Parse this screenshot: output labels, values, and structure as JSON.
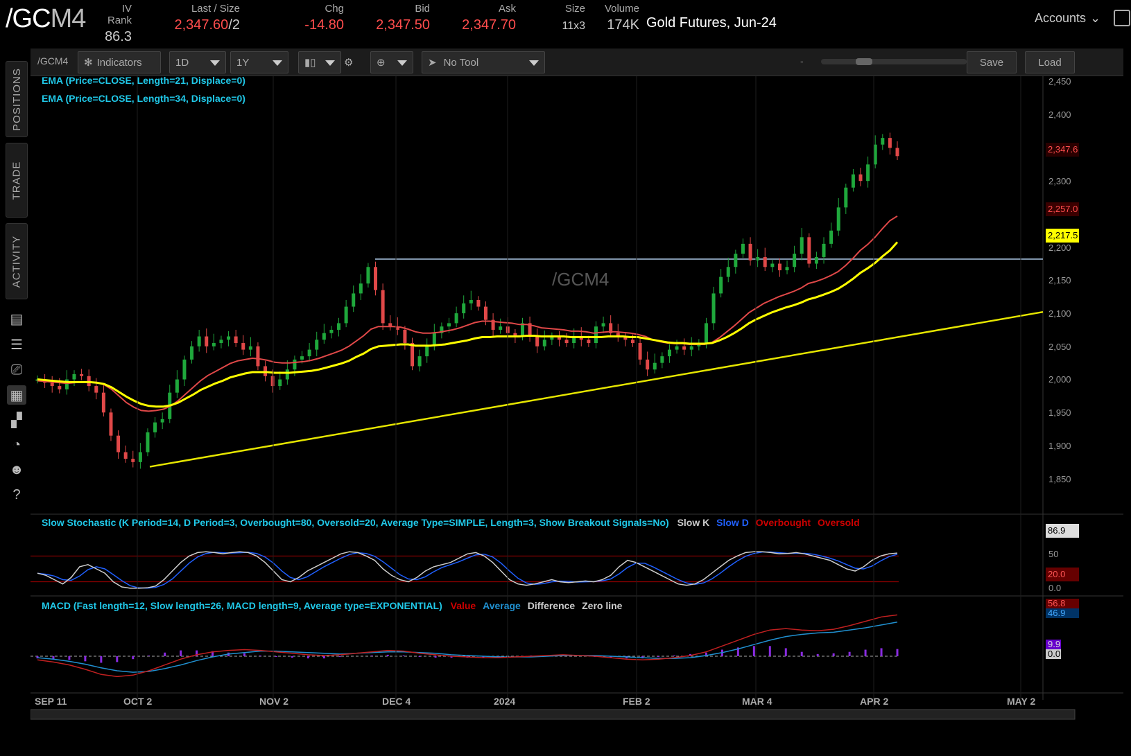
{
  "quote": {
    "symbol_main": "/GC",
    "symbol_dim": "M4",
    "iv_rank_label": "IV Rank",
    "iv_rank": "86.3",
    "last_label": "Last / Size",
    "last": "2,347.60",
    "last_size": "/2",
    "chg_label": "Chg",
    "chg": "-14.80",
    "bid_label": "Bid",
    "bid": "2,347.50",
    "ask_label": "Ask",
    "ask": "2,347.70",
    "size_label": "Size",
    "size": "11x3",
    "volume_label": "Volume",
    "volume": "174K",
    "contract": "Gold Futures, Jun-24",
    "accounts": "Accounts",
    "colors": {
      "negative": "#ff4d4d",
      "accent": "#20c8e8"
    }
  },
  "sidebar": {
    "tabs": [
      "POSITIONS",
      "TRADE",
      "ACTIVITY"
    ],
    "icons": [
      "monitor-icon",
      "list-icon",
      "tv-icon",
      "chart-icon",
      "grid-icon",
      "gauge-icon",
      "people-icon",
      "help-icon"
    ]
  },
  "toolbar": {
    "symbol": "/GCM4",
    "indicators": "Indicators",
    "aggregation": "1D",
    "range": "1Y",
    "drawing_tool": "No Tool",
    "zoom_minus": "-",
    "zoom_plus": "+",
    "save": "Save",
    "load": "Load"
  },
  "chart": {
    "watermark": "/GCM4",
    "study_ema21": "EMA (Price=CLOSE, Length=21, Displace=0)",
    "study_ema34": "EMA (Price=CLOSE, Length=34, Displace=0)",
    "price_ticks": [
      "2,450",
      "2,400",
      "2,347.6",
      "2,300",
      "2,257.0",
      "2,217.5",
      "2,200",
      "2,150",
      "2,100",
      "2,050",
      "2,000",
      "1,950",
      "1,900",
      "1,850"
    ],
    "tag_last": "2,347.6",
    "tag_ema21": "2,257.0",
    "tag_ema34": "2,217.5",
    "stoch_legend": "Slow Stochastic (K Period=14, D Period=3, Overbought=80, Oversold=20, Average Type=SIMPLE, Length=3, Show Breakout Signals=No)",
    "stoch_slowk": "Slow K",
    "stoch_slowd": "Slow D",
    "stoch_ob": "Overbought",
    "stoch_os": "Oversold",
    "stoch_ticks": {
      "k": "86.9",
      "mid": "50",
      "os": "20.0",
      "zero": "0.0"
    },
    "macd_legend": "MACD (Fast length=12, Slow length=26, MACD length=9, Average type=EXPONENTIAL)",
    "macd_value": "Value",
    "macd_avg": "Average",
    "macd_diff": "Difference",
    "macd_zero": "Zero line",
    "macd_ticks": {
      "value": "56.8",
      "avg": "46.9",
      "diff": "9.9",
      "zero": "0.0"
    },
    "x_ticks": [
      "SEP 11",
      "OCT 2",
      "NOV 2",
      "DEC 4",
      "2024",
      "FEB 2",
      "MAR 4",
      "APR 2",
      "MAY 2"
    ]
  },
  "chart_data": {
    "type": "candlestick",
    "title": "/GCM4",
    "x_label": "",
    "y_label": "",
    "ylim": [
      1800,
      2460
    ],
    "horizontal_level": 2192,
    "trendline": [
      [
        "2023-10-04",
        1878
      ],
      [
        "2024-05-01",
        2112
      ]
    ],
    "dates": [
      "SEP 11",
      "OCT 2",
      "NOV 2",
      "DEC 4",
      "2024",
      "FEB 2",
      "MAR 4",
      "APR 2"
    ],
    "closes": [
      2010,
      2005,
      2000,
      1995,
      2010,
      2018,
      2015,
      2000,
      1990,
      1960,
      1925,
      1900,
      1890,
      1885,
      1900,
      1930,
      1945,
      1950,
      1990,
      2010,
      2040,
      2060,
      2075,
      2060,
      2065,
      2070,
      2075,
      2065,
      2055,
      2060,
      2030,
      2015,
      2000,
      2010,
      2025,
      2040,
      2045,
      2055,
      2070,
      2080,
      2085,
      2095,
      2120,
      2140,
      2155,
      2180,
      2145,
      2095,
      2090,
      2085,
      2065,
      2030,
      2045,
      2060,
      2080,
      2090,
      2095,
      2110,
      2125,
      2130,
      2120,
      2100,
      2085,
      2090,
      2080,
      2075,
      2095,
      2075,
      2060,
      2070,
      2075,
      2070,
      2065,
      2075,
      2070,
      2065,
      2090,
      2095,
      2080,
      2075,
      2070,
      2065,
      2040,
      2025,
      2035,
      2045,
      2055,
      2060,
      2055,
      2060,
      2065,
      2095,
      2140,
      2165,
      2180,
      2200,
      2215,
      2190,
      2195,
      2180,
      2185,
      2175,
      2180,
      2200,
      2225,
      2185,
      2195,
      2215,
      2235,
      2270,
      2300,
      2320,
      2310,
      2335,
      2365,
      2375,
      2360,
      2347.6
    ],
    "ema21": [
      2008,
      2007,
      2006,
      2005,
      2004,
      2005,
      2006,
      2006,
      2005,
      2002,
      1995,
      1985,
      1975,
      1968,
      1963,
      1962,
      1963,
      1965,
      1970,
      1978,
      1988,
      1998,
      2008,
      2016,
      2022,
      2028,
      2034,
      2038,
      2040,
      2042,
      2041,
      2039,
      2036,
      2035,
      2035,
      2036,
      2037,
      2039,
      2042,
      2046,
      2050,
      2054,
      2060,
      2068,
      2076,
      2086,
      2090,
      2090,
      2090,
      2089,
      2086,
      2082,
      2080,
      2080,
      2081,
      2083,
      2085,
      2088,
      2092,
      2096,
      2098,
      2098,
      2097,
      2096,
      2095,
      2093,
      2093,
      2091,
      2088,
      2087,
      2086,
      2085,
      2083,
      2083,
      2082,
      2080,
      2081,
      2082,
      2082,
      2081,
      2080,
      2078,
      2075,
      2070,
      2067,
      2065,
      2064,
      2064,
      2063,
      2063,
      2063,
      2066,
      2073,
      2082,
      2091,
      2101,
      2111,
      2118,
      2125,
      2130,
      2135,
      2139,
      2143,
      2148,
      2155,
      2158,
      2162,
      2167,
      2173,
      2182,
      2193,
      2205,
      2214,
      2225,
      2238,
      2250,
      2257
    ],
    "ema34": [
      2010,
      2009,
      2008,
      2007,
      2006,
      2006,
      2006,
      2006,
      2005,
      2003,
      1998,
      1991,
      1984,
      1978,
      1973,
      1970,
      1969,
      1969,
      1971,
      1975,
      1981,
      1987,
      1994,
      1999,
      2004,
      2008,
      2013,
      2016,
      2019,
      2021,
      2021,
      2021,
      2020,
      2020,
      2020,
      2021,
      2022,
      2023,
      2025,
      2028,
      2031,
      2034,
      2038,
      2044,
      2049,
      2056,
      2060,
      2061,
      2062,
      2063,
      2063,
      2061,
      2061,
      2061,
      2062,
      2063,
      2065,
      2067,
      2069,
      2072,
      2074,
      2074,
      2075,
      2075,
      2075,
      2075,
      2076,
      2076,
      2075,
      2075,
      2075,
      2075,
      2074,
      2074,
      2074,
      2074,
      2074,
      2075,
      2075,
      2075,
      2074,
      2074,
      2072,
      2070,
      2068,
      2066,
      2065,
      2065,
      2064,
      2064,
      2064,
      2065,
      2069,
      2074,
      2080,
      2087,
      2095,
      2101,
      2106,
      2111,
      2115,
      2119,
      2122,
      2126,
      2131,
      2134,
      2138,
      2142,
      2147,
      2154,
      2162,
      2171,
      2178,
      2186,
      2196,
      2205,
      2217.5
    ],
    "stoch_k": [
      40,
      35,
      25,
      15,
      30,
      55,
      60,
      50,
      40,
      20,
      8,
      5,
      5,
      6,
      10,
      25,
      45,
      65,
      80,
      88,
      90,
      88,
      85,
      88,
      90,
      88,
      80,
      65,
      45,
      25,
      20,
      30,
      45,
      55,
      65,
      75,
      85,
      90,
      88,
      80,
      70,
      50,
      35,
      25,
      20,
      30,
      45,
      55,
      60,
      65,
      75,
      85,
      88,
      80,
      65,
      45,
      25,
      15,
      12,
      15,
      20,
      25,
      20,
      18,
      20,
      22,
      20,
      25,
      35,
      55,
      70,
      65,
      55,
      45,
      35,
      25,
      15,
      12,
      15,
      25,
      40,
      55,
      70,
      80,
      88,
      90,
      90,
      88,
      85,
      86,
      88,
      85,
      80,
      75,
      70,
      60,
      50,
      45,
      55,
      70,
      80,
      85,
      86.9
    ],
    "macd_value": [
      -5,
      -8,
      -12,
      -18,
      -25,
      -28,
      -26,
      -20,
      -12,
      -4,
      2,
      6,
      8,
      9,
      8,
      6,
      4,
      2,
      1,
      2,
      4,
      6,
      8,
      7,
      4,
      2,
      0,
      -1,
      -2,
      -2,
      -1,
      0,
      1,
      2,
      1,
      0,
      -2,
      -4,
      -5,
      -4,
      -2,
      1,
      6,
      14,
      22,
      30,
      36,
      38,
      36,
      35,
      37,
      42,
      48,
      54,
      56.8
    ],
    "macd_avg": [
      -2,
      -4,
      -7,
      -11,
      -16,
      -20,
      -22,
      -21,
      -17,
      -12,
      -6,
      -1,
      3,
      5,
      7,
      7,
      6,
      5,
      4,
      3,
      4,
      5,
      6,
      6,
      5,
      4,
      2,
      1,
      0,
      -1,
      -1,
      -1,
      0,
      1,
      1,
      1,
      0,
      -1,
      -2,
      -3,
      -3,
      -2,
      1,
      5,
      10,
      16,
      22,
      27,
      30,
      32,
      33,
      36,
      39,
      43,
      46.9
    ]
  }
}
